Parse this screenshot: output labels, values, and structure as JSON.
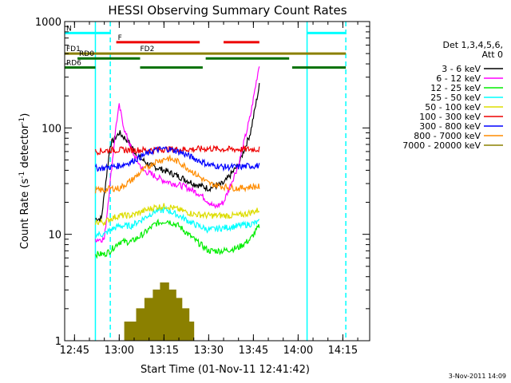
{
  "chart_data": {
    "type": "line",
    "title": "HESSI Observing Summary Count Rates",
    "xlabel": "Start Time (01-Nov-11 12:41:42)",
    "ylabel": "Count Rate (s⁻¹ detector⁻¹)",
    "ylabel_main": "Count Rate (s",
    "ylabel_sup1": "-1",
    "ylabel_mid": " detector",
    "ylabel_sup2": "-1",
    "ylabel_end": ")",
    "yscale": "log",
    "ylim": [
      1,
      1000
    ],
    "xlim": [
      "12:41:42",
      "14:24:00"
    ],
    "xticks": [
      "12:45",
      "13:00",
      "13:15",
      "13:30",
      "13:45",
      "14:00",
      "14:15"
    ],
    "yticks": [
      "1",
      "10",
      "100",
      "1000"
    ],
    "grid": false,
    "date_stamp": "3-Nov-2011 14:09",
    "legend": {
      "position": "right",
      "header": [
        "Det 1,3,4,5,6,",
        "Att 0"
      ],
      "entries": [
        {
          "label": "3 - 6 keV",
          "color": "#000000"
        },
        {
          "label": "6 - 12 keV",
          "color": "#ff00ff"
        },
        {
          "label": "12 - 25 keV",
          "color": "#00ee00"
        },
        {
          "label": "25 - 50 keV",
          "color": "#00ffff"
        },
        {
          "label": "50 - 100 keV",
          "color": "#dddd00"
        },
        {
          "label": "100 - 300 keV",
          "color": "#ee0000"
        },
        {
          "label": "300 - 800 keV",
          "color": "#0000ff"
        },
        {
          "label": "800 - 7000 keV",
          "color": "#ff8c00"
        },
        {
          "label": "7000 - 20000 keV",
          "color": "#8b8000"
        }
      ]
    },
    "flag_bars": [
      {
        "label": "N",
        "color": "#00ffff",
        "level": 780,
        "segments": [
          [
            "12:41:42",
            "12:57"
          ],
          [
            "14:03",
            "14:16"
          ]
        ]
      },
      {
        "label": "F",
        "color": "#ee0000",
        "level": 640,
        "segments": [
          [
            "12:59",
            "13:27"
          ],
          [
            "13:35",
            "13:47"
          ]
        ]
      },
      {
        "label": "FD1",
        "color": "#8b8000",
        "level": 500,
        "segments": [
          [
            "12:41:42",
            "14:16"
          ]
        ]
      },
      {
        "label": "FD2",
        "color": "#8b8000",
        "level": 500,
        "segments": []
      },
      {
        "label": "RD0",
        "color": "#007000",
        "level": 450,
        "segments": [
          [
            "12:46",
            "13:07"
          ],
          [
            "13:29",
            "13:57"
          ]
        ]
      },
      {
        "label": "RD6",
        "color": "#007000",
        "level": 370,
        "segments": [
          [
            "12:41:42",
            "12:52"
          ],
          [
            "13:07",
            "13:28"
          ],
          [
            "13:58",
            "14:16"
          ]
        ]
      }
    ],
    "vertical_markers": [
      {
        "time": "12:52",
        "color": "#00ffff",
        "style": "solid"
      },
      {
        "time": "12:57",
        "color": "#00ffff",
        "style": "dashed"
      },
      {
        "time": "14:03",
        "color": "#00ffff",
        "style": "solid"
      },
      {
        "time": "14:16",
        "color": "#00ffff",
        "style": "dashed"
      }
    ],
    "series": [
      {
        "name": "3 - 6 keV",
        "color": "#000000",
        "x": [
          "12:52",
          "12:54",
          "12:57",
          "13:00",
          "13:03",
          "13:06",
          "13:10",
          "13:15",
          "13:20",
          "13:25",
          "13:30",
          "13:35",
          "13:40",
          "13:44",
          "13:47"
        ],
        "y": [
          14,
          14,
          70,
          90,
          75,
          55,
          45,
          40,
          35,
          30,
          27,
          30,
          45,
          90,
          250
        ]
      },
      {
        "name": "6 - 12 keV",
        "color": "#ff00ff",
        "x": [
          "12:52",
          "12:55",
          "12:59",
          "13:00",
          "13:02",
          "13:05",
          "13:08",
          "13:15",
          "13:22",
          "13:27",
          "13:32",
          "13:35",
          "13:40",
          "13:44",
          "13:47"
        ],
        "y": [
          9,
          9,
          110,
          160,
          90,
          55,
          40,
          32,
          28,
          24,
          18,
          20,
          45,
          130,
          400
        ]
      },
      {
        "name": "12 - 25 keV",
        "color": "#00ee00",
        "x": [
          "12:52",
          "12:55",
          "12:57",
          "13:00",
          "13:04",
          "13:08",
          "13:12",
          "13:16",
          "13:20",
          "13:25",
          "13:30",
          "13:35",
          "13:40",
          "13:44",
          "13:47"
        ],
        "y": [
          6.5,
          6.5,
          7,
          8.5,
          8.5,
          10,
          12.5,
          13.5,
          12,
          9,
          7,
          7,
          7.5,
          9,
          12
        ]
      },
      {
        "name": "25 - 50 keV",
        "color": "#00ffff",
        "x": [
          "12:52",
          "12:55",
          "12:57",
          "13:00",
          "13:04",
          "13:08",
          "13:12",
          "13:16",
          "13:20",
          "13:25",
          "13:30",
          "13:35",
          "13:40",
          "13:44",
          "13:47"
        ],
        "y": [
          10,
          10,
          11,
          12,
          12,
          14,
          16.5,
          17,
          15,
          12.5,
          11,
          11.5,
          12,
          12.5,
          13
        ]
      },
      {
        "name": "50 - 100 keV",
        "color": "#dddd00",
        "x": [
          "12:52",
          "12:55",
          "12:57",
          "13:00",
          "13:04",
          "13:08",
          "13:12",
          "13:16",
          "13:20",
          "13:25",
          "13:30",
          "13:35",
          "13:40",
          "13:44",
          "13:47"
        ],
        "y": [
          13,
          13,
          14,
          15,
          15,
          16.5,
          18,
          18.5,
          17,
          15.5,
          15,
          15,
          15,
          16,
          17
        ]
      },
      {
        "name": "100 - 300 keV",
        "color": "#ee0000",
        "x": [
          "12:52",
          "12:55",
          "12:57",
          "13:00",
          "13:05",
          "13:10",
          "13:15",
          "13:20",
          "13:25",
          "13:30",
          "13:35",
          "13:40",
          "13:44",
          "13:47"
        ],
        "y": [
          60,
          61,
          62,
          62,
          62,
          62,
          63,
          63,
          63,
          64,
          63,
          63,
          63,
          63
        ]
      },
      {
        "name": "300 - 800 keV",
        "color": "#0000ff",
        "x": [
          "12:52",
          "12:55",
          "12:57",
          "13:00",
          "13:04",
          "13:08",
          "13:12",
          "13:16",
          "13:20",
          "13:25",
          "13:30",
          "13:35",
          "13:40",
          "13:44",
          "13:47"
        ],
        "y": [
          42,
          42,
          43,
          44,
          48,
          55,
          62,
          64,
          60,
          52,
          45,
          43,
          43,
          44,
          44
        ]
      },
      {
        "name": "800 - 7000 keV",
        "color": "#ff8c00",
        "x": [
          "12:52",
          "12:55",
          "12:57",
          "13:00",
          "13:04",
          "13:08",
          "13:12",
          "13:16",
          "13:20",
          "13:25",
          "13:30",
          "13:35",
          "13:40",
          "13:44",
          "13:47"
        ],
        "y": [
          26,
          26,
          27,
          27,
          32,
          40,
          48,
          52,
          48,
          38,
          30,
          28,
          27,
          28,
          28
        ]
      },
      {
        "name": "7000 - 20000 keV",
        "color": "#8b8000",
        "x": [
          "13:01",
          "13:04",
          "13:07",
          "13:10",
          "13:12",
          "13:15",
          "13:18",
          "13:20",
          "13:22",
          "13:25"
        ],
        "y": [
          1.2,
          1.5,
          2,
          2.5,
          3,
          3.5,
          3,
          2.5,
          2,
          1.5
        ]
      }
    ]
  }
}
